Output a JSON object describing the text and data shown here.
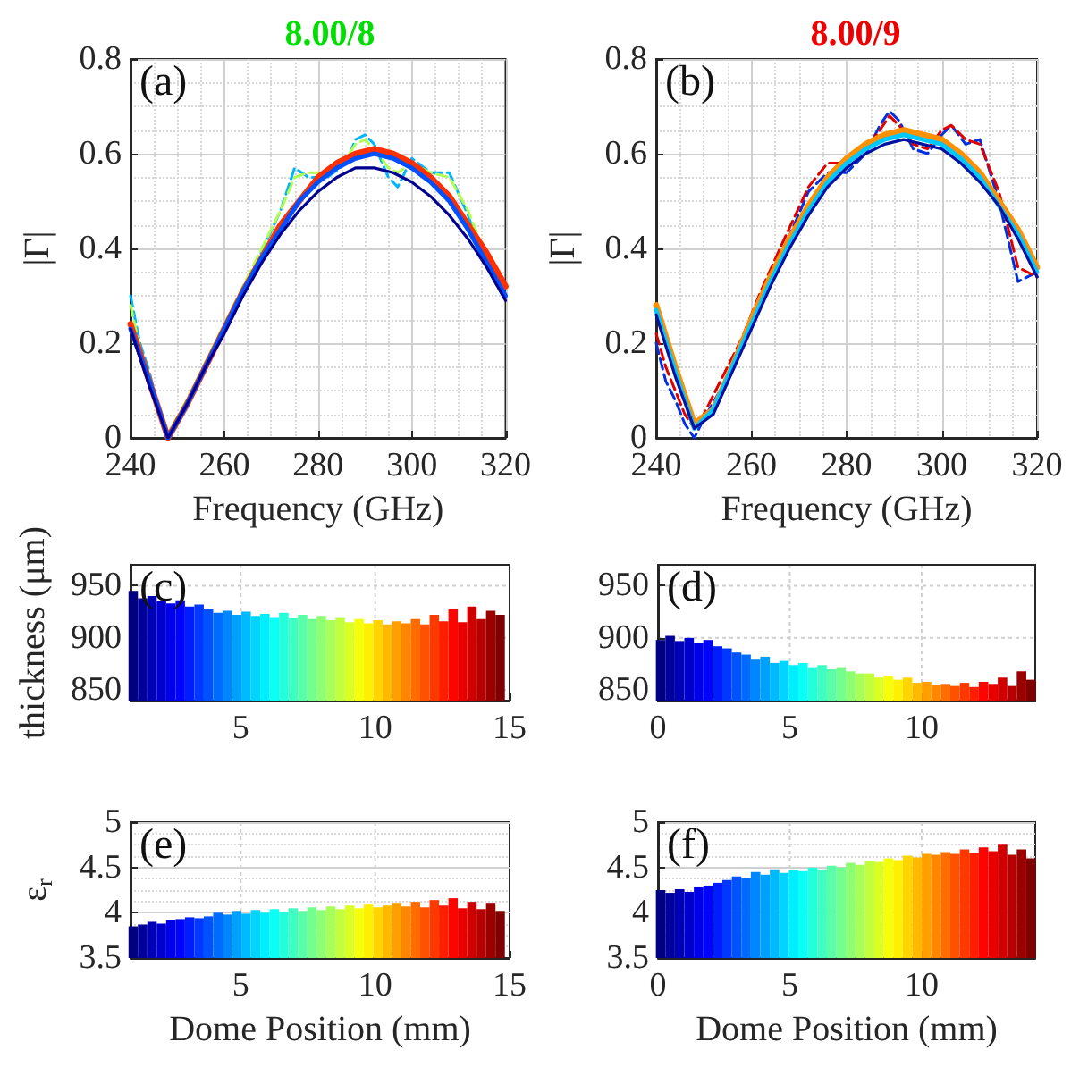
{
  "chart_data": [
    {
      "type": "line",
      "title": "8.00/8",
      "xlabel": "Frequency (GHz)",
      "ylabel": "|Γ|",
      "annotations": [
        "(a)"
      ],
      "x": [
        240,
        244,
        248,
        252,
        256,
        260,
        264,
        268,
        272,
        276,
        280,
        284,
        288,
        292,
        296,
        300,
        304,
        308,
        312,
        316,
        320
      ],
      "series": [
        {
          "color": "#ff3000",
          "values": [
            0.24,
            0.12,
            0.0,
            0.07,
            0.15,
            0.23,
            0.31,
            0.38,
            0.45,
            0.5,
            0.55,
            0.58,
            0.6,
            0.61,
            0.6,
            0.58,
            0.55,
            0.51,
            0.45,
            0.39,
            0.32
          ]
        },
        {
          "color": "#0050ff",
          "values": [
            0.23,
            0.12,
            0.0,
            0.07,
            0.15,
            0.23,
            0.31,
            0.38,
            0.44,
            0.5,
            0.54,
            0.57,
            0.59,
            0.6,
            0.59,
            0.57,
            0.54,
            0.5,
            0.44,
            0.37,
            0.3
          ]
        },
        {
          "color": "#000090",
          "values": [
            0.23,
            0.11,
            0.0,
            0.07,
            0.15,
            0.22,
            0.3,
            0.37,
            0.43,
            0.48,
            0.52,
            0.55,
            0.57,
            0.57,
            0.56,
            0.54,
            0.51,
            0.47,
            0.42,
            0.36,
            0.29
          ]
        },
        {
          "color": "#00b4ff",
          "line_style": "dashed",
          "x": [
            240,
            242,
            244,
            246,
            248,
            252,
            256,
            260,
            266,
            272,
            275,
            278,
            282,
            286,
            288,
            290,
            292,
            295,
            297,
            300,
            304,
            308,
            312,
            316,
            320
          ],
          "values": [
            0.3,
            0.2,
            0.14,
            0.06,
            0.0,
            0.07,
            0.16,
            0.23,
            0.35,
            0.48,
            0.57,
            0.55,
            0.55,
            0.58,
            0.63,
            0.64,
            0.62,
            0.55,
            0.53,
            0.59,
            0.56,
            0.56,
            0.47,
            0.36,
            0.29
          ]
        },
        {
          "color": "#b0ff50",
          "line_style": "dashed",
          "x": [
            240,
            242,
            244,
            246,
            248,
            252,
            256,
            260,
            266,
            272,
            275,
            278,
            282,
            286,
            288,
            290,
            292,
            295,
            297,
            300,
            304,
            308,
            312,
            316,
            320
          ],
          "values": [
            0.28,
            0.19,
            0.13,
            0.06,
            0.01,
            0.08,
            0.16,
            0.24,
            0.36,
            0.48,
            0.55,
            0.56,
            0.56,
            0.59,
            0.62,
            0.63,
            0.61,
            0.57,
            0.56,
            0.58,
            0.56,
            0.55,
            0.48,
            0.38,
            0.3
          ]
        }
      ],
      "xlim": [
        240,
        320
      ],
      "xticks": [
        240,
        260,
        280,
        300,
        320
      ],
      "ylim": [
        0,
        0.8
      ],
      "yticks": [
        0,
        0.2,
        0.4,
        0.6,
        0.8
      ],
      "grid": true
    },
    {
      "type": "line",
      "title": "8.00/9",
      "xlabel": "Frequency (GHz)",
      "ylabel": "|Γ|",
      "annotations": [
        "(b)"
      ],
      "x": [
        240,
        244,
        248,
        252,
        256,
        260,
        264,
        268,
        272,
        276,
        280,
        284,
        288,
        292,
        296,
        300,
        304,
        308,
        312,
        316,
        320
      ],
      "series": [
        {
          "color": "#ff9000",
          "values": [
            0.28,
            0.15,
            0.03,
            0.06,
            0.15,
            0.25,
            0.34,
            0.42,
            0.49,
            0.55,
            0.59,
            0.62,
            0.64,
            0.65,
            0.64,
            0.63,
            0.6,
            0.56,
            0.5,
            0.44,
            0.36
          ]
        },
        {
          "color": "#00c8ff",
          "values": [
            0.27,
            0.14,
            0.02,
            0.06,
            0.15,
            0.24,
            0.33,
            0.41,
            0.48,
            0.54,
            0.58,
            0.61,
            0.63,
            0.64,
            0.63,
            0.62,
            0.59,
            0.55,
            0.49,
            0.43,
            0.35
          ]
        },
        {
          "color": "#0010a0",
          "values": [
            0.26,
            0.13,
            0.02,
            0.05,
            0.14,
            0.23,
            0.32,
            0.4,
            0.47,
            0.53,
            0.57,
            0.6,
            0.62,
            0.63,
            0.62,
            0.61,
            0.58,
            0.54,
            0.49,
            0.42,
            0.34
          ]
        },
        {
          "color": "#0030e0",
          "line_style": "dashed",
          "x": [
            240,
            242,
            244,
            246,
            248,
            250,
            254,
            258,
            262,
            266,
            272,
            276,
            280,
            284,
            287,
            289,
            291,
            294,
            297,
            300,
            302,
            305,
            308,
            312,
            316,
            320
          ],
          "values": [
            0.2,
            0.12,
            0.08,
            0.03,
            0.0,
            0.04,
            0.11,
            0.19,
            0.3,
            0.38,
            0.52,
            0.56,
            0.56,
            0.6,
            0.66,
            0.69,
            0.67,
            0.61,
            0.6,
            0.64,
            0.66,
            0.62,
            0.63,
            0.5,
            0.33,
            0.35
          ]
        },
        {
          "color": "#e00000",
          "line_style": "dashed",
          "x": [
            240,
            242,
            244,
            246,
            248,
            250,
            254,
            258,
            262,
            266,
            272,
            276,
            280,
            284,
            287,
            289,
            291,
            294,
            297,
            300,
            302,
            305,
            308,
            312,
            316,
            320
          ],
          "values": [
            0.22,
            0.15,
            0.1,
            0.05,
            0.02,
            0.05,
            0.13,
            0.21,
            0.31,
            0.4,
            0.53,
            0.58,
            0.58,
            0.61,
            0.65,
            0.68,
            0.66,
            0.62,
            0.61,
            0.65,
            0.66,
            0.63,
            0.62,
            0.52,
            0.36,
            0.34
          ]
        }
      ],
      "xlim": [
        240,
        320
      ],
      "xticks": [
        240,
        260,
        280,
        300,
        320
      ],
      "ylim": [
        0,
        0.8
      ],
      "yticks": [
        0,
        0.2,
        0.4,
        0.6,
        0.8
      ],
      "grid": true
    },
    {
      "type": "bar",
      "ylabel": "thickness (μm)",
      "annotations": [
        "(c)"
      ],
      "x": [
        1.0,
        1.35,
        1.7,
        2.05,
        2.4,
        2.75,
        3.1,
        3.45,
        3.8,
        4.15,
        4.5,
        4.85,
        5.2,
        5.55,
        5.9,
        6.25,
        6.6,
        6.95,
        7.3,
        7.65,
        8.0,
        8.35,
        8.7,
        9.05,
        9.4,
        9.75,
        10.1,
        10.45,
        10.8,
        11.15,
        11.5,
        11.85,
        12.2,
        12.55,
        12.9,
        13.25,
        13.6,
        13.95,
        14.3,
        14.65
      ],
      "values": [
        945,
        938,
        940,
        935,
        933,
        936,
        930,
        932,
        928,
        924,
        926,
        922,
        925,
        921,
        923,
        920,
        924,
        919,
        922,
        918,
        921,
        917,
        920,
        915,
        918,
        914,
        917,
        913,
        916,
        914,
        918,
        913,
        922,
        916,
        928,
        915,
        930,
        918,
        926,
        922
      ],
      "colors": [
        "#000080",
        "#00009a",
        "#0000b4",
        "#0000ce",
        "#0000e8",
        "#0003ff",
        "#001dff",
        "#0038ff",
        "#0052ff",
        "#006cff",
        "#0086ff",
        "#00a0ff",
        "#00baff",
        "#00d4ff",
        "#00efff",
        "#0afff5",
        "#24ffdb",
        "#3effc1",
        "#58ffa7",
        "#72ff8d",
        "#8dff72",
        "#a7ff58",
        "#c1ff3e",
        "#dbff24",
        "#f5ff0a",
        "#ffef00",
        "#ffd400",
        "#ffba00",
        "#ffa000",
        "#ff8600",
        "#ff6c00",
        "#ff5200",
        "#ff3800",
        "#ff1d00",
        "#ff0300",
        "#e80000",
        "#ce0000",
        "#b40000",
        "#9a0000",
        "#800000"
      ],
      "xlim": [
        0.9,
        15
      ],
      "xticks": [
        5,
        10,
        15
      ],
      "ylim": [
        840,
        970
      ],
      "yticks": [
        850,
        900,
        950
      ],
      "grid": true
    },
    {
      "type": "bar",
      "annotations": [
        "(d)"
      ],
      "x": [
        0.1,
        0.46,
        0.82,
        1.18,
        1.54,
        1.9,
        2.26,
        2.62,
        2.98,
        3.34,
        3.7,
        4.06,
        4.42,
        4.78,
        5.14,
        5.5,
        5.86,
        6.22,
        6.58,
        6.94,
        7.3,
        7.66,
        8.02,
        8.38,
        8.74,
        9.1,
        9.46,
        9.82,
        10.18,
        10.54,
        10.9,
        11.26,
        11.62,
        11.98,
        12.34,
        12.7,
        13.06,
        13.42,
        13.78,
        14.14
      ],
      "values": [
        898,
        902,
        897,
        900,
        895,
        898,
        892,
        890,
        886,
        884,
        880,
        882,
        876,
        878,
        874,
        876,
        872,
        874,
        870,
        872,
        868,
        866,
        866,
        862,
        864,
        860,
        862,
        857,
        858,
        855,
        856,
        854,
        857,
        853,
        858,
        856,
        862,
        854,
        868,
        860
      ],
      "colors": [
        "#000080",
        "#00009a",
        "#0000b4",
        "#0000ce",
        "#0000e8",
        "#0003ff",
        "#001dff",
        "#0038ff",
        "#0052ff",
        "#006cff",
        "#0086ff",
        "#00a0ff",
        "#00baff",
        "#00d4ff",
        "#00efff",
        "#0afff5",
        "#24ffdb",
        "#3effc1",
        "#58ffa7",
        "#72ff8d",
        "#8dff72",
        "#a7ff58",
        "#c1ff3e",
        "#dbff24",
        "#f5ff0a",
        "#ffef00",
        "#ffd400",
        "#ffba00",
        "#ffa000",
        "#ff8600",
        "#ff6c00",
        "#ff5200",
        "#ff3800",
        "#ff1d00",
        "#ff0300",
        "#e80000",
        "#ce0000",
        "#b40000",
        "#9a0000",
        "#800000"
      ],
      "xlim": [
        0,
        14.3
      ],
      "xticks": [
        0,
        5,
        10
      ],
      "ylim": [
        840,
        970
      ],
      "yticks": [
        850,
        900,
        950
      ],
      "grid": true
    },
    {
      "type": "bar",
      "xlabel": "Dome Position (mm)",
      "ylabel": "ε$_{r}$",
      "annotations": [
        "(e)"
      ],
      "x": [
        1.0,
        1.35,
        1.7,
        2.05,
        2.4,
        2.75,
        3.1,
        3.45,
        3.8,
        4.15,
        4.5,
        4.85,
        5.2,
        5.55,
        5.9,
        6.25,
        6.6,
        6.95,
        7.3,
        7.65,
        8.0,
        8.35,
        8.7,
        9.05,
        9.4,
        9.75,
        10.1,
        10.45,
        10.8,
        11.15,
        11.5,
        11.85,
        12.2,
        12.55,
        12.9,
        13.25,
        13.6,
        13.95,
        14.3,
        14.65
      ],
      "values": [
        3.85,
        3.87,
        3.9,
        3.88,
        3.92,
        3.93,
        3.95,
        3.94,
        3.96,
        4.0,
        3.98,
        4.02,
        3.99,
        4.03,
        4.0,
        4.04,
        4.01,
        4.05,
        4.02,
        4.06,
        4.03,
        4.07,
        4.04,
        4.08,
        4.05,
        4.09,
        4.06,
        4.08,
        4.1,
        4.07,
        4.12,
        4.06,
        4.14,
        4.08,
        4.16,
        4.05,
        4.12,
        4.04,
        4.1,
        4.02
      ],
      "colors": [
        "#000080",
        "#00009a",
        "#0000b4",
        "#0000ce",
        "#0000e8",
        "#0003ff",
        "#001dff",
        "#0038ff",
        "#0052ff",
        "#006cff",
        "#0086ff",
        "#00a0ff",
        "#00baff",
        "#00d4ff",
        "#00efff",
        "#0afff5",
        "#24ffdb",
        "#3effc1",
        "#58ffa7",
        "#72ff8d",
        "#8dff72",
        "#a7ff58",
        "#c1ff3e",
        "#dbff24",
        "#f5ff0a",
        "#ffef00",
        "#ffd400",
        "#ffba00",
        "#ffa000",
        "#ff8600",
        "#ff6c00",
        "#ff5200",
        "#ff3800",
        "#ff1d00",
        "#ff0300",
        "#e80000",
        "#ce0000",
        "#b40000",
        "#9a0000",
        "#800000"
      ],
      "xlim": [
        0.9,
        15
      ],
      "xticks": [
        5,
        10,
        15
      ],
      "ylim": [
        3.5,
        5
      ],
      "yticks": [
        3.5,
        4,
        4.5,
        5
      ],
      "grid": true
    },
    {
      "type": "bar",
      "xlabel": "Dome Position (mm)",
      "annotations": [
        "(f)"
      ],
      "x": [
        0.1,
        0.46,
        0.82,
        1.18,
        1.54,
        1.9,
        2.26,
        2.62,
        2.98,
        3.34,
        3.7,
        4.06,
        4.42,
        4.78,
        5.14,
        5.5,
        5.86,
        6.22,
        6.58,
        6.94,
        7.3,
        7.66,
        8.02,
        8.38,
        8.74,
        9.1,
        9.46,
        9.82,
        10.18,
        10.54,
        10.9,
        11.26,
        11.62,
        11.98,
        12.34,
        12.7,
        13.06,
        13.42,
        13.78,
        14.14
      ],
      "values": [
        4.25,
        4.22,
        4.26,
        4.23,
        4.28,
        4.3,
        4.33,
        4.36,
        4.4,
        4.38,
        4.45,
        4.42,
        4.48,
        4.44,
        4.47,
        4.46,
        4.5,
        4.48,
        4.52,
        4.5,
        4.55,
        4.53,
        4.57,
        4.56,
        4.6,
        4.58,
        4.63,
        4.61,
        4.65,
        4.64,
        4.67,
        4.65,
        4.7,
        4.66,
        4.72,
        4.68,
        4.75,
        4.64,
        4.7,
        4.6
      ],
      "colors": [
        "#000080",
        "#00009a",
        "#0000b4",
        "#0000ce",
        "#0000e8",
        "#0003ff",
        "#001dff",
        "#0038ff",
        "#0052ff",
        "#006cff",
        "#0086ff",
        "#00a0ff",
        "#00baff",
        "#00d4ff",
        "#00efff",
        "#0afff5",
        "#24ffdb",
        "#3effc1",
        "#58ffa7",
        "#72ff8d",
        "#8dff72",
        "#a7ff58",
        "#c1ff3e",
        "#dbff24",
        "#f5ff0a",
        "#ffef00",
        "#ffd400",
        "#ffba00",
        "#ffa000",
        "#ff8600",
        "#ff6c00",
        "#ff5200",
        "#ff3800",
        "#ff1d00",
        "#ff0300",
        "#e80000",
        "#ce0000",
        "#b40000",
        "#9a0000",
        "#800000"
      ],
      "xlim": [
        0,
        14.3
      ],
      "xticks": [
        0,
        5,
        10
      ],
      "ylim": [
        3.5,
        5
      ],
      "yticks": [
        3.5,
        4,
        4.5,
        5
      ],
      "grid": true
    }
  ]
}
